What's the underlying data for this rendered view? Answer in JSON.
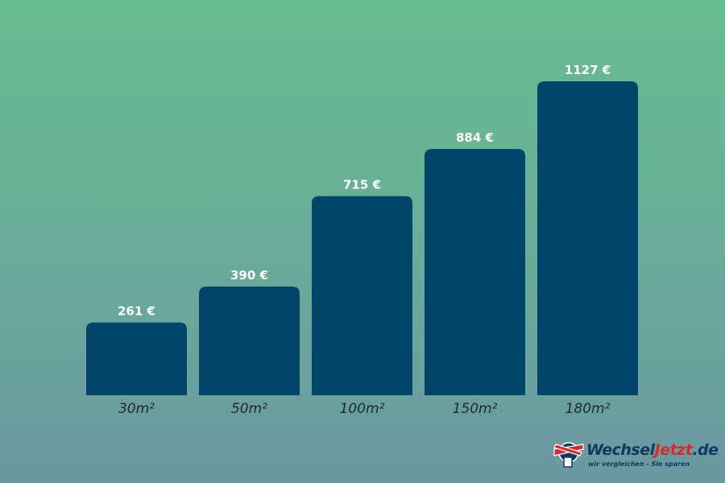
{
  "chart_data": {
    "type": "bar",
    "title": "",
    "xlabel": "",
    "ylabel": "",
    "categories": [
      "30m²",
      "50m²",
      "100m²",
      "150m²",
      "180m²"
    ],
    "values": [
      261,
      390,
      715,
      884,
      1127
    ],
    "data_labels": [
      "261 €",
      "390 €",
      "715 €",
      "884 €",
      "1127 €"
    ],
    "ylim": [
      0,
      1127
    ],
    "grid": false,
    "legend": "none",
    "colors": {
      "bar": "#02456a",
      "label": "#ffffff",
      "tick": "#1a2a33"
    }
  },
  "logo": {
    "name_part1": "Wechsel",
    "name_part2": "Jetzt",
    "name_part3": ".de",
    "tagline": "wir vergleichen - Sie sparen"
  }
}
